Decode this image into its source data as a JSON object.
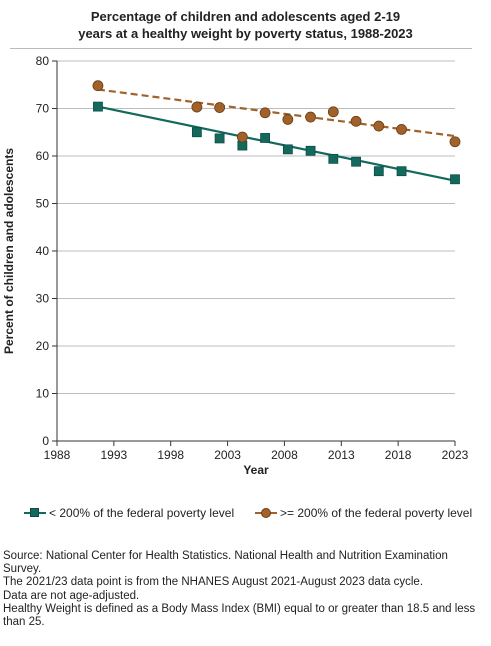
{
  "chart_data": {
    "type": "scatter",
    "title_lines": [
      "Percentage of children and adolescents aged 2-19",
      "years at a healthy weight by poverty status, 1988-2023"
    ],
    "xlabel": "Year",
    "ylabel": "Percent of children and adolescents",
    "xlim": [
      1988,
      2023
    ],
    "ylim": [
      0,
      80
    ],
    "x_ticks": [
      1988,
      1993,
      1998,
      2003,
      2008,
      2013,
      2018,
      2023
    ],
    "y_ticks": [
      0,
      10,
      20,
      30,
      40,
      50,
      60,
      70,
      80
    ],
    "grid": "horizontal",
    "legend_position": "bottom",
    "series": [
      {
        "name": "< 200% of the federal poverty level",
        "marker": "square",
        "color": "#14695d",
        "trend_color": "#14695d",
        "trend_style": "solid",
        "points": [
          {
            "x": 1991.6,
            "y": 70.4
          },
          {
            "x": 2000.3,
            "y": 65.0
          },
          {
            "x": 2002.3,
            "y": 63.7
          },
          {
            "x": 2004.3,
            "y": 62.2
          },
          {
            "x": 2006.3,
            "y": 63.8
          },
          {
            "x": 2008.3,
            "y": 61.4
          },
          {
            "x": 2010.3,
            "y": 61.1
          },
          {
            "x": 2012.3,
            "y": 59.4
          },
          {
            "x": 2014.3,
            "y": 58.8
          },
          {
            "x": 2016.3,
            "y": 56.8
          },
          {
            "x": 2018.3,
            "y": 56.8
          },
          {
            "x": 2023.0,
            "y": 55.1
          }
        ],
        "trend": [
          {
            "x": 1991.6,
            "y": 70.4
          },
          {
            "x": 2023.0,
            "y": 54.8
          }
        ]
      },
      {
        "name": ">= 200% of the federal poverty level",
        "marker": "circle",
        "color": "#a0622a",
        "trend_color": "#a0622a",
        "trend_style": "dashed",
        "points": [
          {
            "x": 1991.6,
            "y": 74.8
          },
          {
            "x": 2000.3,
            "y": 70.3
          },
          {
            "x": 2002.3,
            "y": 70.2
          },
          {
            "x": 2004.3,
            "y": 64.0
          },
          {
            "x": 2006.3,
            "y": 69.1
          },
          {
            "x": 2008.3,
            "y": 67.7
          },
          {
            "x": 2010.3,
            "y": 68.2
          },
          {
            "x": 2012.3,
            "y": 69.3
          },
          {
            "x": 2014.3,
            "y": 67.3
          },
          {
            "x": 2016.3,
            "y": 66.3
          },
          {
            "x": 2018.3,
            "y": 65.6
          },
          {
            "x": 2023.0,
            "y": 63.0
          }
        ],
        "trend": [
          {
            "x": 1991.6,
            "y": 74.0
          },
          {
            "x": 2023.0,
            "y": 64.2
          }
        ]
      }
    ]
  },
  "source_lines": [
    "Source: National Center for Health Statistics. National Health and Nutrition Examination Survey.",
    "The 2021/23 data point is from the NHANES August 2021-August 2023 data cycle.",
    "Data are not age-adjusted.",
    "Healthy Weight is defined as a Body Mass Index (BMI) equal to or greater than 18.5 and less than 25."
  ]
}
